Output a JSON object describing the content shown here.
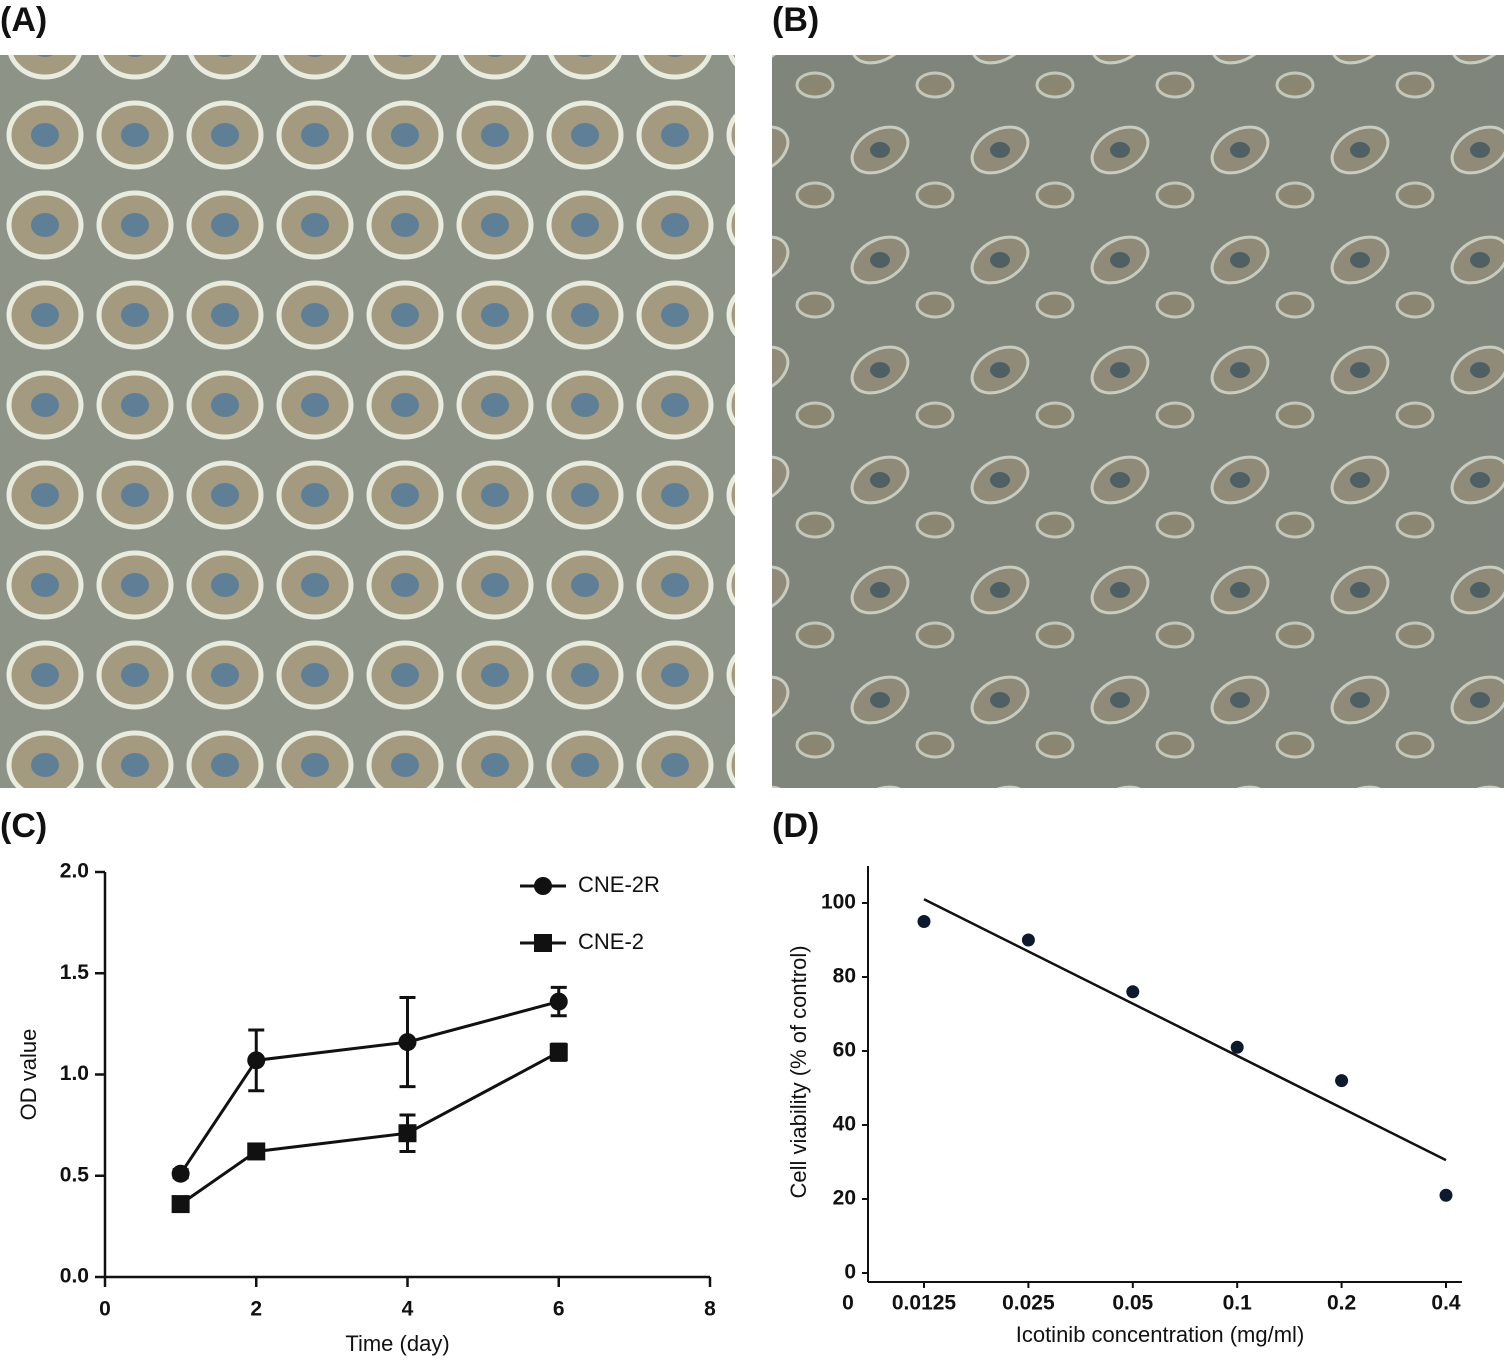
{
  "panel_labels": [
    "(A)",
    "(B)",
    "(C)",
    "(D)"
  ],
  "chart_data": [
    {
      "type": "line",
      "x_label": "Time (day)",
      "y_label": "OD value",
      "xlim": [
        0,
        8
      ],
      "xticks": [
        0,
        2,
        4,
        6,
        8
      ],
      "ylim": [
        0,
        2
      ],
      "yticks": [
        {
          "value": 0,
          "label": "0.0"
        },
        {
          "value": 0.5,
          "label": "0.5"
        },
        {
          "value": 1,
          "label": "1.0"
        },
        {
          "value": 1.5,
          "label": "1.5"
        },
        {
          "value": 2,
          "label": "2.0"
        }
      ],
      "x": [
        1,
        2,
        4,
        6
      ],
      "series": [
        {
          "name": "CNE-2R",
          "color": "#111111",
          "marker": "circle",
          "values": [
            0.51,
            1.07,
            1.16,
            1.36
          ],
          "errors": [
            0.02,
            0.15,
            0.22,
            0.07
          ]
        },
        {
          "name": "CNE-2",
          "color": "#111111",
          "marker": "square",
          "values": [
            0.36,
            0.62,
            0.71,
            1.11
          ],
          "errors": [
            0.02,
            0.03,
            0.09,
            0.04
          ]
        }
      ]
    },
    {
      "type": "scatter",
      "x_label": "Icotinib concentration (mg/ml)",
      "y_label": "Cell viability (% of control)",
      "x_origin_label": "0",
      "categories": [
        "0.0125",
        "0.025",
        "0.05",
        "0.1",
        "0.2",
        "0.4"
      ],
      "values": [
        95,
        90,
        76,
        61,
        52,
        21
      ],
      "color": "#0d1a2e",
      "trendline": {
        "start": 101,
        "end": 30.5
      },
      "ylim": [
        0,
        110
      ],
      "yticks": [
        0,
        20,
        40,
        60,
        80,
        100
      ]
    }
  ]
}
